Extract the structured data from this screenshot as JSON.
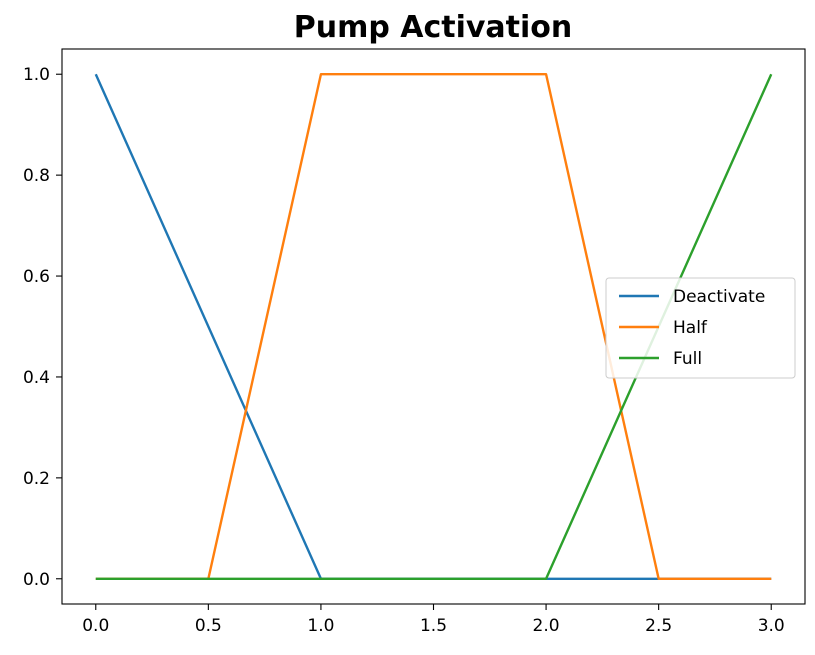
{
  "chart_data": {
    "type": "line",
    "title": "Pump Activation",
    "xlabel": "",
    "ylabel": "",
    "xlim": [
      -0.15,
      3.15
    ],
    "ylim": [
      -0.05,
      1.05
    ],
    "xticks": [
      0.0,
      0.5,
      1.0,
      1.5,
      2.0,
      2.5,
      3.0
    ],
    "xtick_labels": [
      "0.0",
      "0.5",
      "1.0",
      "1.5",
      "2.0",
      "2.5",
      "3.0"
    ],
    "yticks": [
      0.0,
      0.2,
      0.4,
      0.6,
      0.8,
      1.0
    ],
    "ytick_labels": [
      "0.0",
      "0.2",
      "0.4",
      "0.6",
      "0.8",
      "1.0"
    ],
    "grid": false,
    "legend_position": "center-right",
    "series": [
      {
        "name": "Deactivate",
        "color": "#1f77b4",
        "x": [
          0.0,
          1.0,
          2.0,
          3.0
        ],
        "y": [
          1.0,
          0.0,
          0.0,
          0.0
        ]
      },
      {
        "name": "Half",
        "color": "#ff7f0e",
        "x": [
          0.0,
          0.5,
          1.0,
          2.0,
          2.5,
          3.0
        ],
        "y": [
          0.0,
          0.0,
          1.0,
          1.0,
          0.0,
          0.0
        ]
      },
      {
        "name": "Full",
        "color": "#2ca02c",
        "x": [
          0.0,
          1.0,
          2.0,
          3.0
        ],
        "y": [
          0.0,
          0.0,
          0.0,
          1.0
        ]
      }
    ]
  }
}
